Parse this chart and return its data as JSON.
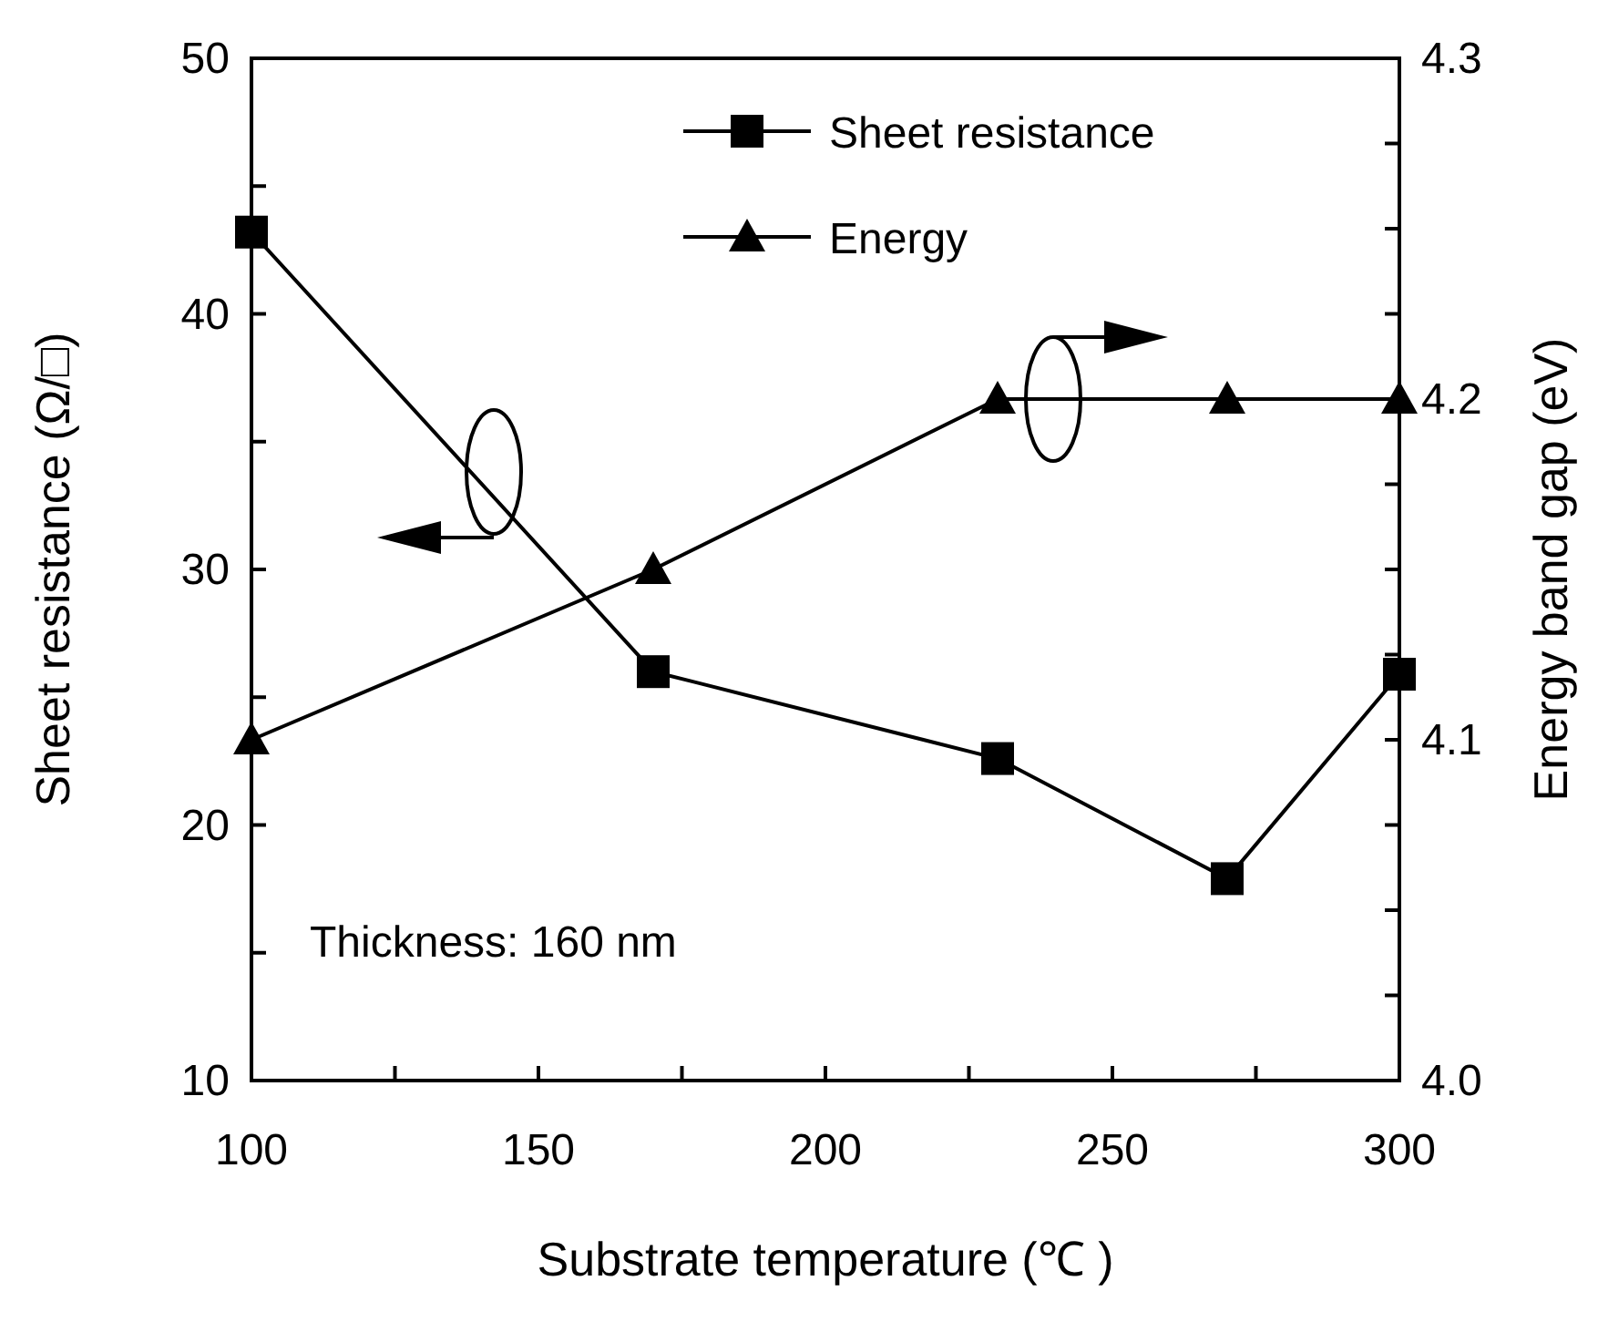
{
  "chart_data": {
    "type": "line",
    "xlabel": "Substrate temperature (℃ )",
    "ylabel": "Sheet resistance (Ω/□)",
    "y2label": "Energy band gap (eV)",
    "x": [
      100,
      170,
      230,
      270,
      300
    ],
    "series": [
      {
        "name": "Sheet resistance",
        "color": "#000000",
        "marker": "square",
        "values": [
          43.2,
          26.0,
          22.6,
          17.9,
          25.9
        ]
      },
      {
        "name": "Energy",
        "color": "#000000",
        "marker": "triangle",
        "axis": "y2",
        "values": [
          4.1,
          4.15,
          4.2,
          4.2,
          4.2
        ]
      }
    ],
    "xlim": [
      100,
      300
    ],
    "xticks": [
      100,
      {
        "value": 125,
        "label": null
      },
      150,
      {
        "value": 175,
        "label": null
      },
      200,
      {
        "value": 225,
        "label": null
      },
      250,
      {
        "value": 275,
        "label": null
      },
      300
    ],
    "ylim": [
      10,
      50
    ],
    "yticks": [
      10,
      {
        "value": 15,
        "label": null
      },
      20,
      {
        "value": 25,
        "label": null
      },
      30,
      {
        "value": 35,
        "label": null
      },
      40,
      {
        "value": 45,
        "label": null
      },
      50
    ],
    "y2lim": [
      4.0,
      4.3
    ],
    "y2ticks": [
      {
        "value": 4,
        "label": "4.0"
      },
      {
        "value": 4.025,
        "label": null
      },
      {
        "value": 4.05,
        "label": null
      },
      {
        "value": 4.075,
        "label": null
      },
      4.1,
      {
        "value": 4.125,
        "label": null
      },
      {
        "value": 4.15,
        "label": null
      },
      {
        "value": 4.175,
        "label": null
      },
      4.2,
      {
        "value": 4.225,
        "label": null
      },
      {
        "value": 4.25,
        "label": null
      },
      {
        "value": 4.275,
        "label": null
      },
      4.3
    ],
    "annotations": [
      "Thickness: 160 nm"
    ],
    "grid": false,
    "legend": "top",
    "line_style": "solid"
  }
}
